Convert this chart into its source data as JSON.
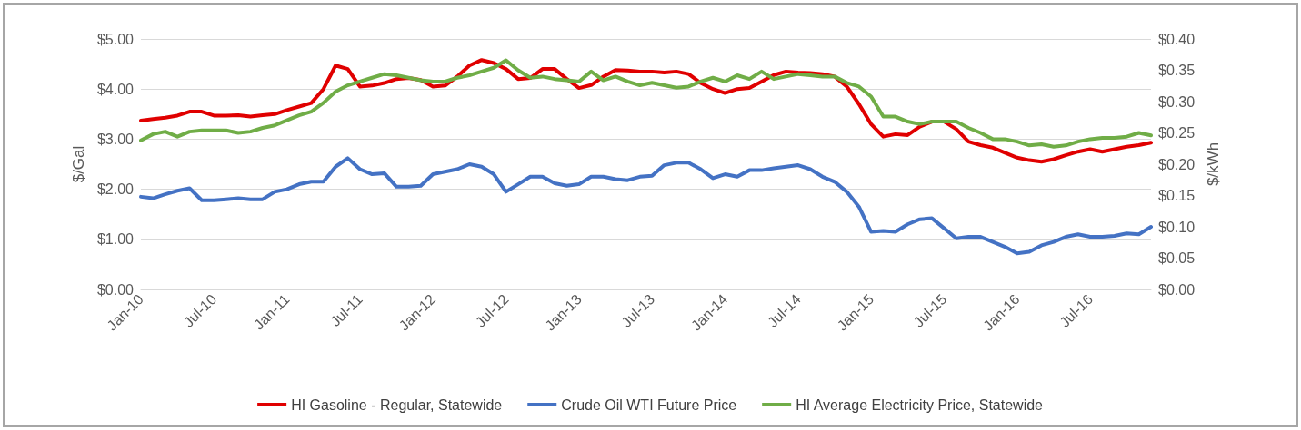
{
  "chart_data": {
    "type": "line",
    "ylabel": "$/Gal",
    "y2label": "$/kWh",
    "categories": [
      "Jan-10",
      null,
      null,
      null,
      null,
      null,
      "Jul-10",
      null,
      null,
      null,
      null,
      null,
      "Jan-11",
      null,
      null,
      null,
      null,
      null,
      "Jul-11",
      null,
      null,
      null,
      null,
      null,
      "Jan-12",
      null,
      null,
      null,
      null,
      null,
      "Jul-12",
      null,
      null,
      null,
      null,
      null,
      "Jan-13",
      null,
      null,
      null,
      null,
      null,
      "Jul-13",
      null,
      null,
      null,
      null,
      null,
      "Jan-14",
      null,
      null,
      null,
      null,
      null,
      "Jul-14",
      null,
      null,
      null,
      null,
      null,
      "Jan-15",
      null,
      null,
      null,
      null,
      null,
      "Jul-15",
      null,
      null,
      null,
      null,
      null,
      "Jan-16",
      null,
      null,
      null,
      null,
      null,
      "Jul-16",
      null,
      null,
      null,
      null,
      null
    ],
    "series": [
      {
        "name": "HI Gasoline - Regular, Statewide",
        "color": "#e00000",
        "values": [
          3.37,
          3.4,
          3.43,
          3.47,
          3.55,
          3.55,
          3.47,
          3.47,
          3.48,
          3.45,
          3.48,
          3.5,
          3.58,
          3.65,
          3.72,
          4.0,
          4.47,
          4.4,
          4.05,
          4.07,
          4.12,
          4.2,
          4.22,
          4.18,
          4.05,
          4.07,
          4.25,
          4.47,
          4.58,
          4.52,
          4.4,
          4.2,
          4.22,
          4.4,
          4.4,
          4.2,
          4.02,
          4.08,
          4.25,
          4.38,
          4.37,
          4.35,
          4.35,
          4.33,
          4.35,
          4.3,
          4.12,
          4.0,
          3.92,
          4.0,
          4.02,
          4.15,
          4.28,
          4.35,
          4.33,
          4.32,
          4.3,
          4.25,
          4.05,
          3.7,
          3.3,
          3.05,
          3.1,
          3.08,
          3.25,
          3.35,
          3.35,
          3.2,
          2.95,
          2.88,
          2.83,
          2.73,
          2.63,
          2.58,
          2.55,
          2.6,
          2.68,
          2.75,
          2.8,
          2.75,
          2.8,
          2.85,
          2.88,
          2.93
        ]
      },
      {
        "name": "Crude Oil WTI Future Price",
        "color": "#4472c4",
        "values": [
          1.85,
          1.82,
          1.9,
          1.97,
          2.02,
          1.78,
          1.78,
          1.8,
          1.82,
          1.8,
          1.8,
          1.95,
          2.0,
          2.1,
          2.15,
          2.15,
          2.45,
          2.62,
          2.4,
          2.3,
          2.32,
          2.05,
          2.05,
          2.07,
          2.3,
          2.35,
          2.4,
          2.5,
          2.45,
          2.3,
          1.95,
          2.1,
          2.25,
          2.25,
          2.12,
          2.07,
          2.1,
          2.25,
          2.25,
          2.2,
          2.18,
          2.25,
          2.27,
          2.48,
          2.53,
          2.53,
          2.4,
          2.22,
          2.3,
          2.25,
          2.38,
          2.38,
          2.42,
          2.45,
          2.48,
          2.4,
          2.25,
          2.15,
          1.95,
          1.65,
          1.15,
          1.17,
          1.15,
          1.3,
          1.4,
          1.42,
          1.22,
          1.02,
          1.05,
          1.05,
          0.95,
          0.85,
          0.72,
          0.75,
          0.88,
          0.95,
          1.05,
          1.1,
          1.05,
          1.05,
          1.07,
          1.12,
          1.1,
          1.25
        ]
      },
      {
        "name": "HI Average Electricity Price, Statewide",
        "color": "#70ad47",
        "axis": "y2",
        "values": [
          0.238,
          0.248,
          0.252,
          0.244,
          0.252,
          0.254,
          0.254,
          0.254,
          0.25,
          0.252,
          0.258,
          0.262,
          0.27,
          0.278,
          0.284,
          0.298,
          0.316,
          0.326,
          0.332,
          0.338,
          0.344,
          0.342,
          0.338,
          0.334,
          0.332,
          0.332,
          0.338,
          0.342,
          0.348,
          0.354,
          0.366,
          0.35,
          0.338,
          0.34,
          0.336,
          0.334,
          0.332,
          0.348,
          0.334,
          0.34,
          0.332,
          0.326,
          0.33,
          0.326,
          0.322,
          0.324,
          0.332,
          0.338,
          0.332,
          0.342,
          0.336,
          0.348,
          0.336,
          0.34,
          0.344,
          0.342,
          0.34,
          0.34,
          0.33,
          0.324,
          0.308,
          0.276,
          0.276,
          0.268,
          0.264,
          0.268,
          0.268,
          0.268,
          0.258,
          0.25,
          0.24,
          0.24,
          0.236,
          0.23,
          0.232,
          0.228,
          0.23,
          0.236,
          0.24,
          0.242,
          0.242,
          0.244,
          0.25,
          0.246
        ]
      }
    ],
    "ylim": [
      0,
      5
    ],
    "yticks": [
      {
        "value": 0,
        "label": "$0.00"
      },
      {
        "value": 1,
        "label": "$1.00"
      },
      {
        "value": 2,
        "label": "$2.00"
      },
      {
        "value": 3,
        "label": "$3.00"
      },
      {
        "value": 4,
        "label": "$4.00"
      },
      {
        "value": 5,
        "label": "$5.00"
      }
    ],
    "y2lim": [
      0,
      0.4
    ],
    "y2ticks": [
      {
        "value": 0,
        "label": "$0.00"
      },
      {
        "value": 0.05,
        "label": "$0.05"
      },
      {
        "value": 0.1,
        "label": "$0.10"
      },
      {
        "value": 0.15,
        "label": "$0.15"
      },
      {
        "value": 0.2,
        "label": "$0.20"
      },
      {
        "value": 0.25,
        "label": "$0.25"
      },
      {
        "value": 0.3,
        "label": "$0.30"
      },
      {
        "value": 0.35,
        "label": "$0.35"
      },
      {
        "value": 0.4,
        "label": "$0.40"
      }
    ],
    "grid": "y",
    "legend": "bottom",
    "marker": "none",
    "line_style": "solid"
  }
}
